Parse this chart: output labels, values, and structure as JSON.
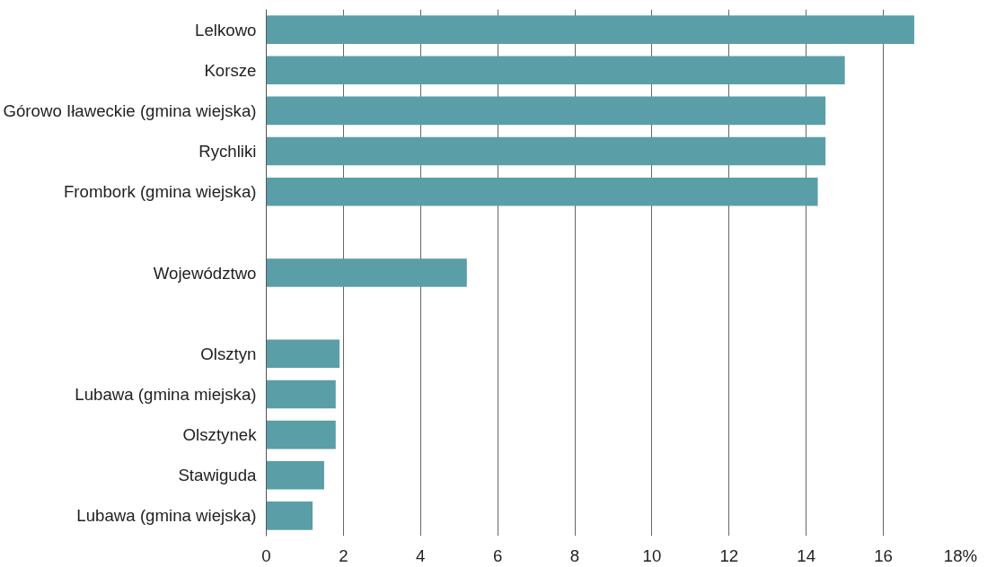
{
  "chart_data": {
    "type": "bar",
    "orientation": "horizontal",
    "categories": [
      "Lelkowo",
      "Korsze",
      "Górowo Iławeckie (gmina wiejska)",
      "Rychliki",
      "Frombork (gmina wiejska)",
      null,
      "Województwo",
      null,
      "Olsztyn",
      "Lubawa (gmina miejska)",
      "Olsztynek",
      "Stawiguda",
      "Lubawa (gmina wiejska)"
    ],
    "values": [
      16.8,
      15.0,
      14.5,
      14.5,
      14.3,
      null,
      5.2,
      null,
      1.9,
      1.8,
      1.8,
      1.5,
      1.2
    ],
    "color": "#5a9fa7",
    "xlim": [
      0,
      18
    ],
    "xticks": [
      0,
      2,
      4,
      6,
      8,
      10,
      12,
      14,
      16,
      {
        "value": 18,
        "label": "18%"
      }
    ],
    "grid": "x"
  }
}
